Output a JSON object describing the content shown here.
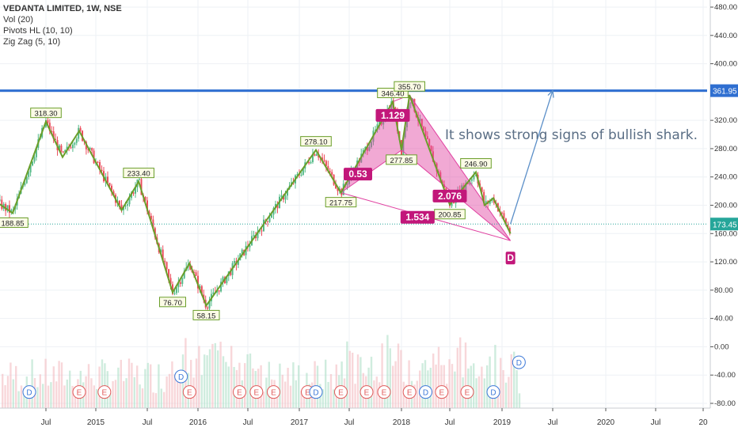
{
  "chart_data": {
    "type": "candlestick",
    "title": "VEDANTA LIMITED, 1W, NSE",
    "indicators": [
      "Vol (20)",
      "Pivots HL (10, 10)",
      "Zig Zag (5, 10)"
    ],
    "annotation_text": "It shows strong signs of bullish shark.",
    "y_ticks": [
      "480.00",
      "440.00",
      "400.00",
      "360.00",
      "320.00",
      "280.00",
      "240.00",
      "200.00",
      "160.00",
      "120.00",
      "80.00",
      "40.00",
      "0.00",
      "-40.00",
      "-80.00"
    ],
    "x_ticks": [
      "Jul",
      "2015",
      "Jul",
      "2016",
      "Jul",
      "2017",
      "Jul",
      "2018",
      "Jul",
      "2019",
      "Jul",
      "2020",
      "Jul",
      "20"
    ],
    "resistance_price": 361.95,
    "resistance_label": "361.95",
    "last_price": 173.45,
    "last_price_label": "173.45",
    "colors": {
      "up": "#53b987",
      "down": "#eb4d5c",
      "zigzag": "#6a9e2a",
      "harmonic": "#e040a0",
      "resistance": "#2f6fd1",
      "arrow": "#5b8fc8",
      "last": "#26a69a"
    },
    "zigzag": [
      {
        "date": "2014-01",
        "v": 205
      },
      {
        "date": "2014-03",
        "v": 188.85
      },
      {
        "date": "2014-07",
        "v": 318.3
      },
      {
        "date": "2014-09",
        "v": 268
      },
      {
        "date": "2014-11",
        "v": 305
      },
      {
        "date": "2015-04",
        "v": 193
      },
      {
        "date": "2015-06",
        "v": 233.4
      },
      {
        "date": "2015-10",
        "v": 76.7
      },
      {
        "date": "2015-12",
        "v": 118
      },
      {
        "date": "2016-02",
        "v": 58.15
      },
      {
        "date": "2017-03",
        "v": 278.1
      },
      {
        "date": "2017-06",
        "v": 217.75
      },
      {
        "date": "2017-12",
        "v": 346.4
      },
      {
        "date": "2018-01",
        "v": 277.85
      },
      {
        "date": "2018-02",
        "v": 355.7
      },
      {
        "date": "2018-07",
        "v": 200.85
      },
      {
        "date": "2018-10",
        "v": 246.9
      },
      {
        "date": "2018-11",
        "v": 200
      },
      {
        "date": "2018-12",
        "v": 210
      },
      {
        "date": "2019-02",
        "v": 160
      }
    ],
    "pivot_labels": [
      {
        "text": "188.85",
        "date": "2014-03",
        "v": 188.85,
        "pos": "below"
      },
      {
        "text": "318.30",
        "date": "2014-07",
        "v": 318.3,
        "pos": "above"
      },
      {
        "text": "233.40",
        "date": "2015-06",
        "v": 233.4,
        "pos": "above"
      },
      {
        "text": "76.70",
        "date": "2015-10",
        "v": 76.7,
        "pos": "below"
      },
      {
        "text": "58.15",
        "date": "2016-02",
        "v": 58.15,
        "pos": "below"
      },
      {
        "text": "278.10",
        "date": "2017-03",
        "v": 278.1,
        "pos": "above"
      },
      {
        "text": "217.75",
        "date": "2017-06",
        "v": 217.75,
        "pos": "below"
      },
      {
        "text": "346.40",
        "date": "2017-12",
        "v": 346.4,
        "pos": "above"
      },
      {
        "text": "277.85",
        "date": "2018-01",
        "v": 277.85,
        "pos": "below"
      },
      {
        "text": "355.70",
        "date": "2018-02",
        "v": 355.7,
        "pos": "above"
      },
      {
        "text": "200.85",
        "date": "2018-07",
        "v": 200.85,
        "pos": "below"
      },
      {
        "text": "246.90",
        "date": "2018-10",
        "v": 246.9,
        "pos": "above"
      }
    ],
    "harmonic_points": [
      {
        "id": "X",
        "date": "2017-06",
        "v": 217.75
      },
      {
        "id": "A",
        "date": "2017-12",
        "v": 346.4
      },
      {
        "id": "B",
        "date": "2018-01",
        "v": 277.85
      },
      {
        "id": "C",
        "date": "2018-02",
        "v": 355.7
      },
      {
        "id": "D",
        "date": "2019-02",
        "v": 150
      }
    ],
    "harmonic_point_labels": [
      "D"
    ],
    "harmonic_ratios": [
      {
        "text": "0.53",
        "date": "2017-08",
        "v": 244
      },
      {
        "text": "1.129",
        "date": "2017-12",
        "v": 327
      },
      {
        "text": "2.076",
        "date": "2018-07",
        "v": 213
      },
      {
        "text": "1.534",
        "date": "2018-03",
        "v": 183
      }
    ],
    "forecast_arrow": {
      "from": {
        "date": "2019-02",
        "v": 173.45
      },
      "to": {
        "date": "2019-07",
        "v": 362
      }
    },
    "earnings_markers": [
      {
        "date": "2014-11",
        "t": "E"
      },
      {
        "date": "2015-02",
        "t": "E"
      },
      {
        "date": "2015-12",
        "t": "E"
      },
      {
        "date": "2016-06",
        "t": "E"
      },
      {
        "date": "2016-08",
        "t": "E"
      },
      {
        "date": "2016-10",
        "t": "E"
      },
      {
        "date": "2017-02",
        "t": "E"
      },
      {
        "date": "2017-06",
        "t": "E"
      },
      {
        "date": "2017-09",
        "t": "E"
      },
      {
        "date": "2017-11",
        "t": "E"
      },
      {
        "date": "2018-02",
        "t": "E"
      },
      {
        "date": "2018-06",
        "t": "E"
      },
      {
        "date": "2018-09",
        "t": "E"
      }
    ],
    "dividend_markers": [
      {
        "date": "2014-05",
        "t": "D",
        "v": -64
      },
      {
        "date": "2015-11",
        "t": "D",
        "v": -42
      },
      {
        "date": "2017-03",
        "t": "D",
        "v": -64
      },
      {
        "date": "2018-04",
        "t": "D",
        "v": -64
      },
      {
        "date": "2018-12",
        "t": "D",
        "v": -64
      },
      {
        "date": "2019-03",
        "t": "D",
        "v": -22
      }
    ]
  }
}
